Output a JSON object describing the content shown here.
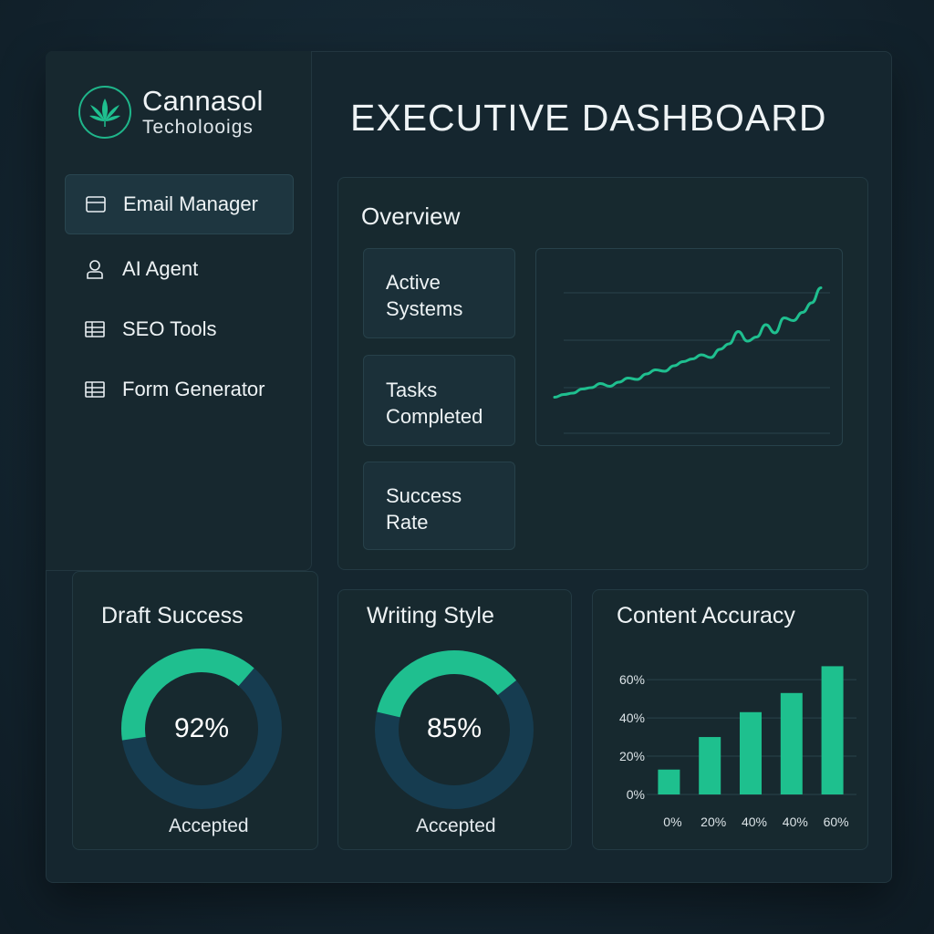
{
  "brand": {
    "name": "Cannasol",
    "subtitle": "Techolooigs"
  },
  "sidebar": {
    "items": [
      {
        "label": "Email Manager",
        "icon": "card-icon",
        "active": true
      },
      {
        "label": "AI Agent",
        "icon": "user-icon",
        "active": false
      },
      {
        "label": "SEO Tools",
        "icon": "grid-icon",
        "active": false
      },
      {
        "label": "Form Generator",
        "icon": "grid-icon",
        "active": false
      }
    ]
  },
  "header": {
    "title": "EXECUTIVE DASHBOARD"
  },
  "overview": {
    "title": "Overview",
    "cards": [
      {
        "line1": "Active",
        "line2": "Systems"
      },
      {
        "line1": "Tasks",
        "line2": "Completed"
      },
      {
        "line1": "Success",
        "line2": "Rate"
      }
    ]
  },
  "colors": {
    "accent": "#1fbf8f",
    "ring_track": "#163c50",
    "bar": "#1ec08e"
  },
  "draft_success": {
    "title": "Draft Success",
    "value": "92%",
    "caption": "Accepted",
    "percent": 92
  },
  "writing_style": {
    "title": "Writing Style",
    "value": "85%",
    "caption": "Accepted",
    "percent": 85
  },
  "chart_data": [
    {
      "type": "line",
      "title": "",
      "x": [
        0,
        1,
        2,
        3,
        4,
        5,
        6,
        7,
        8,
        9,
        10,
        11,
        12,
        13,
        14,
        15,
        16,
        17,
        18,
        19,
        20,
        21,
        22,
        23,
        24,
        25,
        26,
        27,
        28,
        29
      ],
      "series": [
        {
          "values": [
            5,
            7,
            8,
            11,
            12,
            15,
            13,
            16,
            19,
            18,
            22,
            25,
            24,
            28,
            31,
            33,
            36,
            34,
            40,
            44,
            53,
            46,
            49,
            58,
            52,
            63,
            61,
            67,
            74,
            85
          ]
        }
      ],
      "ylim": [
        0,
        100
      ],
      "grid": true
    },
    {
      "type": "bar",
      "title": "Content Accuracy",
      "categories": [
        "0%",
        "20%",
        "40%",
        "40%",
        "60%"
      ],
      "values": [
        13,
        30,
        43,
        53,
        67
      ],
      "yticks": [
        "0%",
        "20%",
        "40%",
        "60%"
      ],
      "ylim": [
        0,
        70
      ],
      "grid": true
    }
  ]
}
